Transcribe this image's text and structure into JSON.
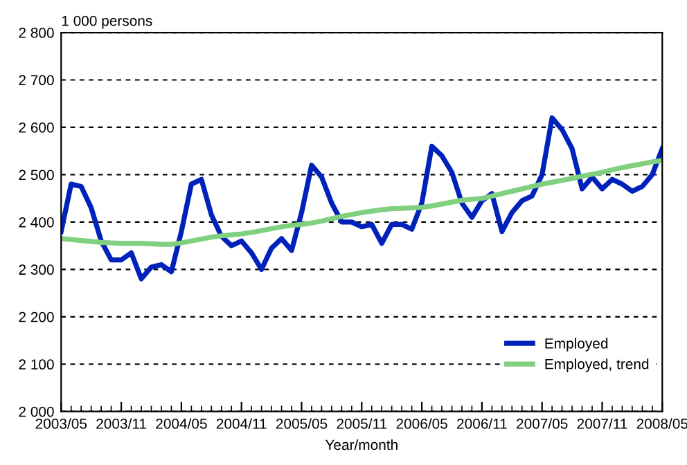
{
  "chart_data": {
    "type": "line",
    "ylabel": "1 000 persons",
    "xlabel": "Year/month",
    "categories": [
      "2003/05",
      null,
      null,
      null,
      null,
      null,
      "2003/11",
      null,
      null,
      null,
      null,
      null,
      "2004/05",
      null,
      null,
      null,
      null,
      null,
      "2004/11",
      null,
      null,
      null,
      null,
      null,
      "2005/05",
      null,
      null,
      null,
      null,
      null,
      "2005/11",
      null,
      null,
      null,
      null,
      null,
      "2006/05",
      null,
      null,
      null,
      null,
      null,
      "2006/11",
      null,
      null,
      null,
      null,
      null,
      "2007/05",
      null,
      null,
      null,
      null,
      null,
      "2007/11",
      null,
      null,
      null,
      null,
      null,
      "2008/05"
    ],
    "series": [
      {
        "name": "Employed",
        "color": "#0022bb",
        "values": [
          2380,
          2480,
          2475,
          2430,
          2360,
          2320,
          2320,
          2335,
          2280,
          2305,
          2310,
          2295,
          2380,
          2480,
          2490,
          2415,
          2370,
          2350,
          2360,
          2335,
          2300,
          2345,
          2365,
          2340,
          2420,
          2520,
          2495,
          2440,
          2400,
          2400,
          2390,
          2395,
          2355,
          2395,
          2395,
          2385,
          2440,
          2560,
          2540,
          2505,
          2440,
          2410,
          2445,
          2460,
          2380,
          2420,
          2445,
          2455,
          2500,
          2620,
          2595,
          2555,
          2470,
          2495,
          2470,
          2490,
          2480,
          2465,
          2475,
          2500,
          2555
        ]
      },
      {
        "name": "Employed, trend",
        "color": "#80d080",
        "values": [
          2365,
          2363,
          2361,
          2359,
          2357,
          2356,
          2355,
          2355,
          2355,
          2354,
          2353,
          2353,
          2356,
          2360,
          2364,
          2368,
          2371,
          2373,
          2375,
          2378,
          2382,
          2386,
          2390,
          2393,
          2395,
          2398,
          2402,
          2407,
          2412,
          2416,
          2420,
          2423,
          2426,
          2428,
          2429,
          2430,
          2431,
          2434,
          2438,
          2442,
          2446,
          2448,
          2450,
          2455,
          2460,
          2465,
          2470,
          2475,
          2480,
          2484,
          2488,
          2492,
          2497,
          2501,
          2505,
          2510,
          2515,
          2519,
          2523,
          2527,
          2530
        ]
      }
    ],
    "ylim": [
      2000,
      2800
    ],
    "yticks": [
      {
        "value": 2000,
        "label": "2 000"
      },
      {
        "value": 2100,
        "label": "2 100"
      },
      {
        "value": 2200,
        "label": "2 200"
      },
      {
        "value": 2300,
        "label": "2 300"
      },
      {
        "value": 2400,
        "label": "2 400"
      },
      {
        "value": 2500,
        "label": "2 500"
      },
      {
        "value": 2600,
        "label": "2 600"
      },
      {
        "value": 2700,
        "label": "2 700"
      },
      {
        "value": 2800,
        "label": "2 800"
      }
    ],
    "grid": "y",
    "legend": "bottom right",
    "line_style": "solid",
    "marker": "none"
  }
}
